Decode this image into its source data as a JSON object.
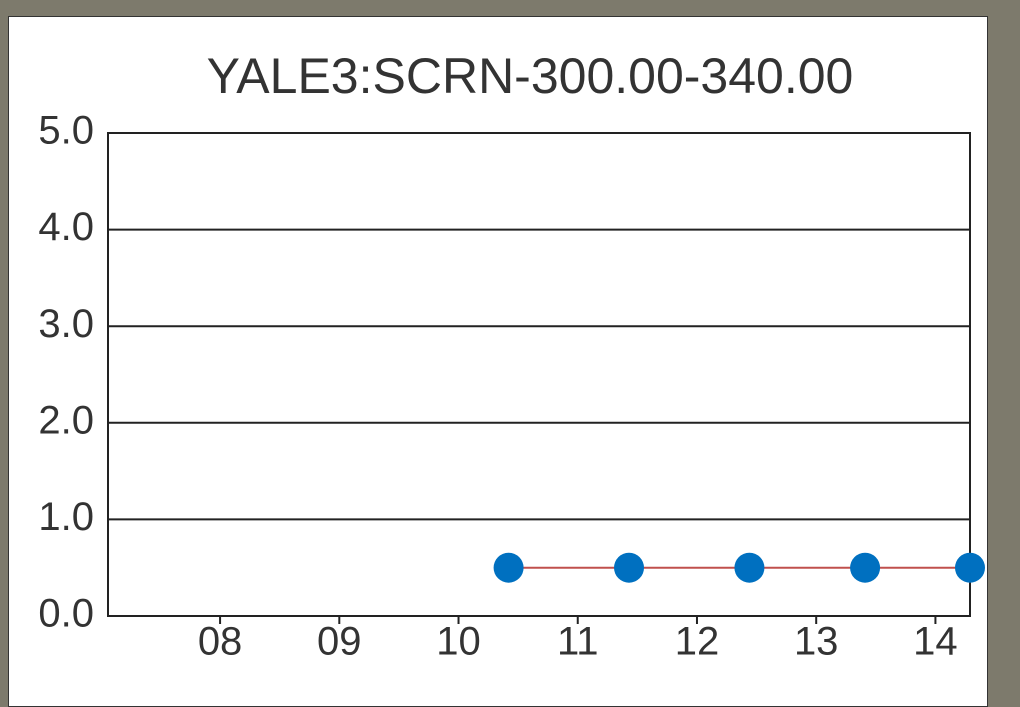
{
  "chart_data": {
    "type": "line",
    "title": "YALE3:SCRN-300.00-340.00",
    "x": [
      10.42,
      11.43,
      12.44,
      13.41,
      14.29
    ],
    "series": [
      {
        "color": "#0070c0",
        "line_color": "#c0504d",
        "values": [
          0.5,
          0.5,
          0.5,
          0.5,
          0.5
        ]
      }
    ],
    "xlim": [
      7.06,
      14.29
    ],
    "xticks": [
      {
        "value": 8,
        "label": "08"
      },
      {
        "value": 9,
        "label": "09"
      },
      {
        "value": 10,
        "label": "10"
      },
      {
        "value": 11,
        "label": "11"
      },
      {
        "value": 12,
        "label": "12"
      },
      {
        "value": 13,
        "label": "13"
      },
      {
        "value": 14,
        "label": "14"
      }
    ],
    "ylim": [
      0,
      5
    ],
    "yticks": [
      {
        "value": 0,
        "label": "0.0"
      },
      {
        "value": 1,
        "label": "1.0"
      },
      {
        "value": 2,
        "label": "2.0"
      },
      {
        "value": 3,
        "label": "3.0"
      },
      {
        "value": 4,
        "label": "4.0"
      },
      {
        "value": 5,
        "label": "5.0"
      }
    ],
    "grid": true
  }
}
